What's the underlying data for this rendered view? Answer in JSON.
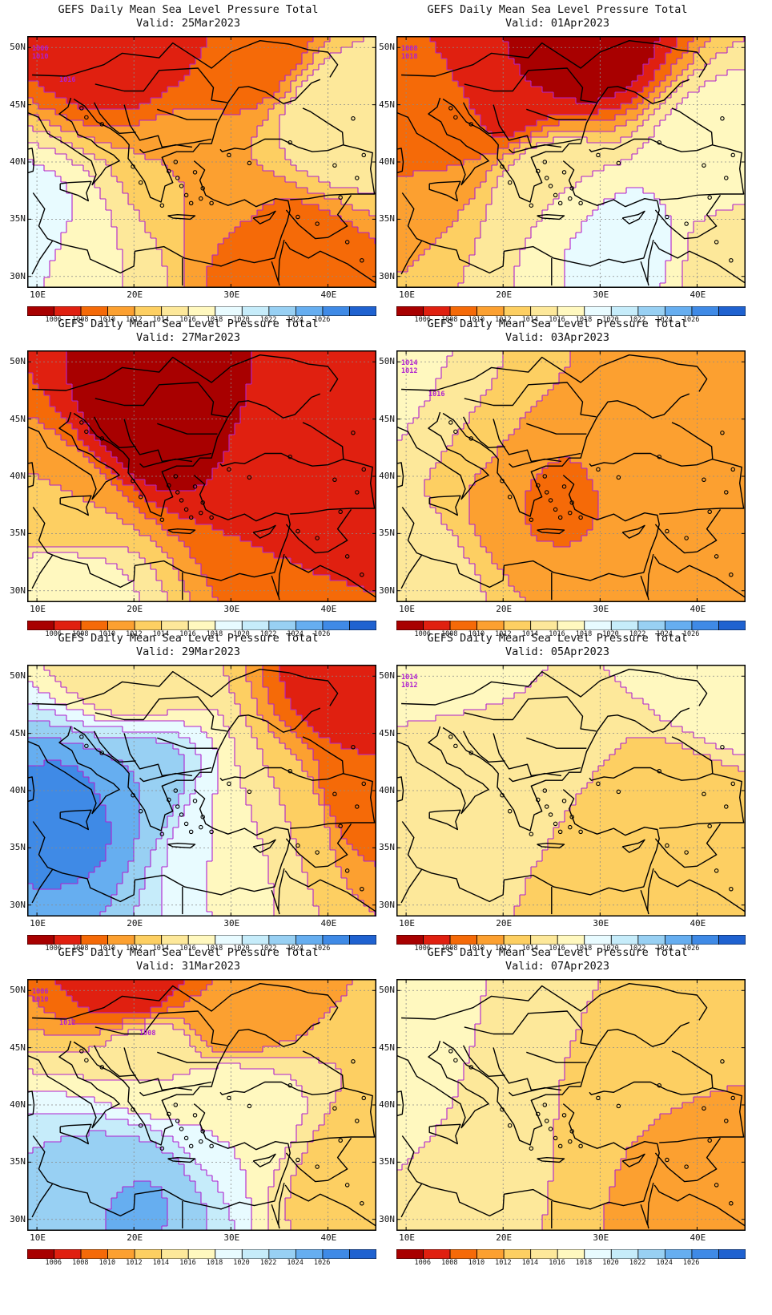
{
  "figure": {
    "panel_title": "GEFS Daily Mean Sea Level Pressure Total",
    "valid_prefix": "Valid:",
    "lat_ticks": [
      "30N",
      "35N",
      "40N",
      "45N",
      "50N"
    ],
    "lon_ticks": [
      "10E",
      "20E",
      "30E",
      "40E"
    ],
    "colorbar": {
      "labels": [
        "1006",
        "1008",
        "1010",
        "1012",
        "1014",
        "1016",
        "1018",
        "1020",
        "1022",
        "1024",
        "1026"
      ],
      "colors": [
        "#a80000",
        "#e02010",
        "#f56a08",
        "#fca030",
        "#fdcf62",
        "#fde89a",
        "#fff8bf",
        "#e8fbff",
        "#c6ecfa",
        "#98d0f3",
        "#66aef0",
        "#3f8ae6",
        "#1f62d0"
      ]
    },
    "contour_color": "#b020d0"
  },
  "chart_data": [
    {
      "type": "heatmap",
      "valid": "25Mar2023",
      "field": "mean sea level pressure",
      "lon_range": [
        9,
        45
      ],
      "lat_range": [
        29,
        51
      ],
      "contour_labels": [
        "1006",
        "1010",
        "1016"
      ],
      "levels": [
        {
          "value": 1016,
          "lon": 15,
          "lat": 31
        },
        {
          "value": 1006,
          "lon": 18,
          "lat": 51
        },
        {
          "value": 1008,
          "lon": 32,
          "lat": 50
        },
        {
          "value": 1016,
          "lon": 41,
          "lat": 44
        },
        {
          "value": 1008,
          "lon": 35,
          "lat": 31
        },
        {
          "value": 1012,
          "lon": 27,
          "lat": 38
        },
        {
          "value": 1020,
          "lon": 9,
          "lat": 33
        }
      ]
    },
    {
      "type": "heatmap",
      "valid": "27Mar2023",
      "field": "mean sea level pressure",
      "lon_range": [
        9,
        45
      ],
      "lat_range": [
        29,
        51
      ],
      "contour_labels": [],
      "levels": [
        {
          "value": 1004,
          "lon": 22,
          "lat": 45
        },
        {
          "value": 1006,
          "lon": 35,
          "lat": 48
        },
        {
          "value": 1008,
          "lon": 38,
          "lat": 40
        },
        {
          "value": 1012,
          "lon": 12,
          "lat": 37
        },
        {
          "value": 1018,
          "lon": 12,
          "lat": 30
        },
        {
          "value": 1008,
          "lon": 42,
          "lat": 34
        }
      ]
    },
    {
      "type": "heatmap",
      "valid": "29Mar2023",
      "field": "mean sea level pressure",
      "lon_range": [
        9,
        45
      ],
      "lat_range": [
        29,
        51
      ],
      "contour_labels": [],
      "levels": [
        {
          "value": 1027,
          "lon": 14,
          "lat": 38
        },
        {
          "value": 1024,
          "lon": 20,
          "lat": 40
        },
        {
          "value": 1018,
          "lon": 29,
          "lat": 36
        },
        {
          "value": 1014,
          "lon": 36,
          "lat": 38
        },
        {
          "value": 1006,
          "lon": 43,
          "lat": 49
        },
        {
          "value": 1008,
          "lon": 43,
          "lat": 40
        },
        {
          "value": 1014,
          "lon": 20,
          "lat": 51
        }
      ]
    },
    {
      "type": "heatmap",
      "valid": "31Mar2023",
      "field": "mean sea level pressure",
      "lon_range": [
        9,
        45
      ],
      "lat_range": [
        29,
        51
      ],
      "contour_labels": [
        "1006",
        "1010",
        "1012",
        "1008"
      ],
      "levels": [
        {
          "value": 1006,
          "lon": 20,
          "lat": 51
        },
        {
          "value": 1010,
          "lon": 30,
          "lat": 48
        },
        {
          "value": 1016,
          "lon": 22,
          "lat": 44
        },
        {
          "value": 1018,
          "lon": 30,
          "lat": 40
        },
        {
          "value": 1022,
          "lon": 18,
          "lat": 33
        },
        {
          "value": 1025,
          "lon": 19,
          "lat": 32
        },
        {
          "value": 1012,
          "lon": 44,
          "lat": 33
        }
      ]
    },
    {
      "type": "heatmap",
      "valid": "01Apr2023",
      "field": "mean sea level pressure",
      "lon_range": [
        9,
        45
      ],
      "lat_range": [
        29,
        51
      ],
      "contour_labels": [
        "1008",
        "1018"
      ],
      "levels": [
        {
          "value": 1004,
          "lon": 28,
          "lat": 50
        },
        {
          "value": 1006,
          "lon": 20,
          "lat": 46
        },
        {
          "value": 1010,
          "lon": 14,
          "lat": 43
        },
        {
          "value": 1016,
          "lon": 25,
          "lat": 38
        },
        {
          "value": 1019,
          "lon": 32,
          "lat": 33
        },
        {
          "value": 1018,
          "lon": 42,
          "lat": 40
        },
        {
          "value": 1014,
          "lon": 45,
          "lat": 32
        }
      ]
    },
    {
      "type": "heatmap",
      "valid": "03Apr2023",
      "field": "mean sea level pressure",
      "lon_range": [
        9,
        45
      ],
      "lat_range": [
        29,
        51
      ],
      "contour_labels": [
        "1014",
        "1012",
        "1016"
      ],
      "levels": [
        {
          "value": 1014,
          "lon": 15,
          "lat": 45
        },
        {
          "value": 1012,
          "lon": 22,
          "lat": 40
        },
        {
          "value": 1009,
          "lon": 24,
          "lat": 39
        },
        {
          "value": 1010,
          "lon": 42,
          "lat": 49
        },
        {
          "value": 1018,
          "lon": 9,
          "lat": 48
        },
        {
          "value": 1016,
          "lon": 9,
          "lat": 31
        },
        {
          "value": 1012,
          "lon": 35,
          "lat": 44
        }
      ]
    },
    {
      "type": "heatmap",
      "valid": "05Apr2023",
      "field": "mean sea level pressure",
      "lon_range": [
        9,
        45
      ],
      "lat_range": [
        29,
        51
      ],
      "contour_labels": [
        "1014",
        "1012"
      ],
      "levels": [
        {
          "value": 1016,
          "lon": 22,
          "lat": 47
        },
        {
          "value": 1014,
          "lon": 12,
          "lat": 42
        },
        {
          "value": 1012,
          "lon": 38,
          "lat": 38
        },
        {
          "value": 1012,
          "lon": 43,
          "lat": 34
        },
        {
          "value": 1018,
          "lon": 10,
          "lat": 50
        },
        {
          "value": 1018,
          "lon": 44,
          "lat": 49
        }
      ]
    },
    {
      "type": "heatmap",
      "valid": "07Apr2023",
      "field": "mean sea level pressure",
      "lon_range": [
        9,
        45
      ],
      "lat_range": [
        29,
        51
      ],
      "contour_labels": [],
      "levels": [
        {
          "value": 1014,
          "lon": 25,
          "lat": 46
        },
        {
          "value": 1016,
          "lon": 13,
          "lat": 38
        },
        {
          "value": 1018,
          "lon": 10,
          "lat": 49
        },
        {
          "value": 1012,
          "lon": 38,
          "lat": 38
        },
        {
          "value": 1010,
          "lon": 44,
          "lat": 33
        },
        {
          "value": 1014,
          "lon": 38,
          "lat": 49
        }
      ]
    }
  ]
}
